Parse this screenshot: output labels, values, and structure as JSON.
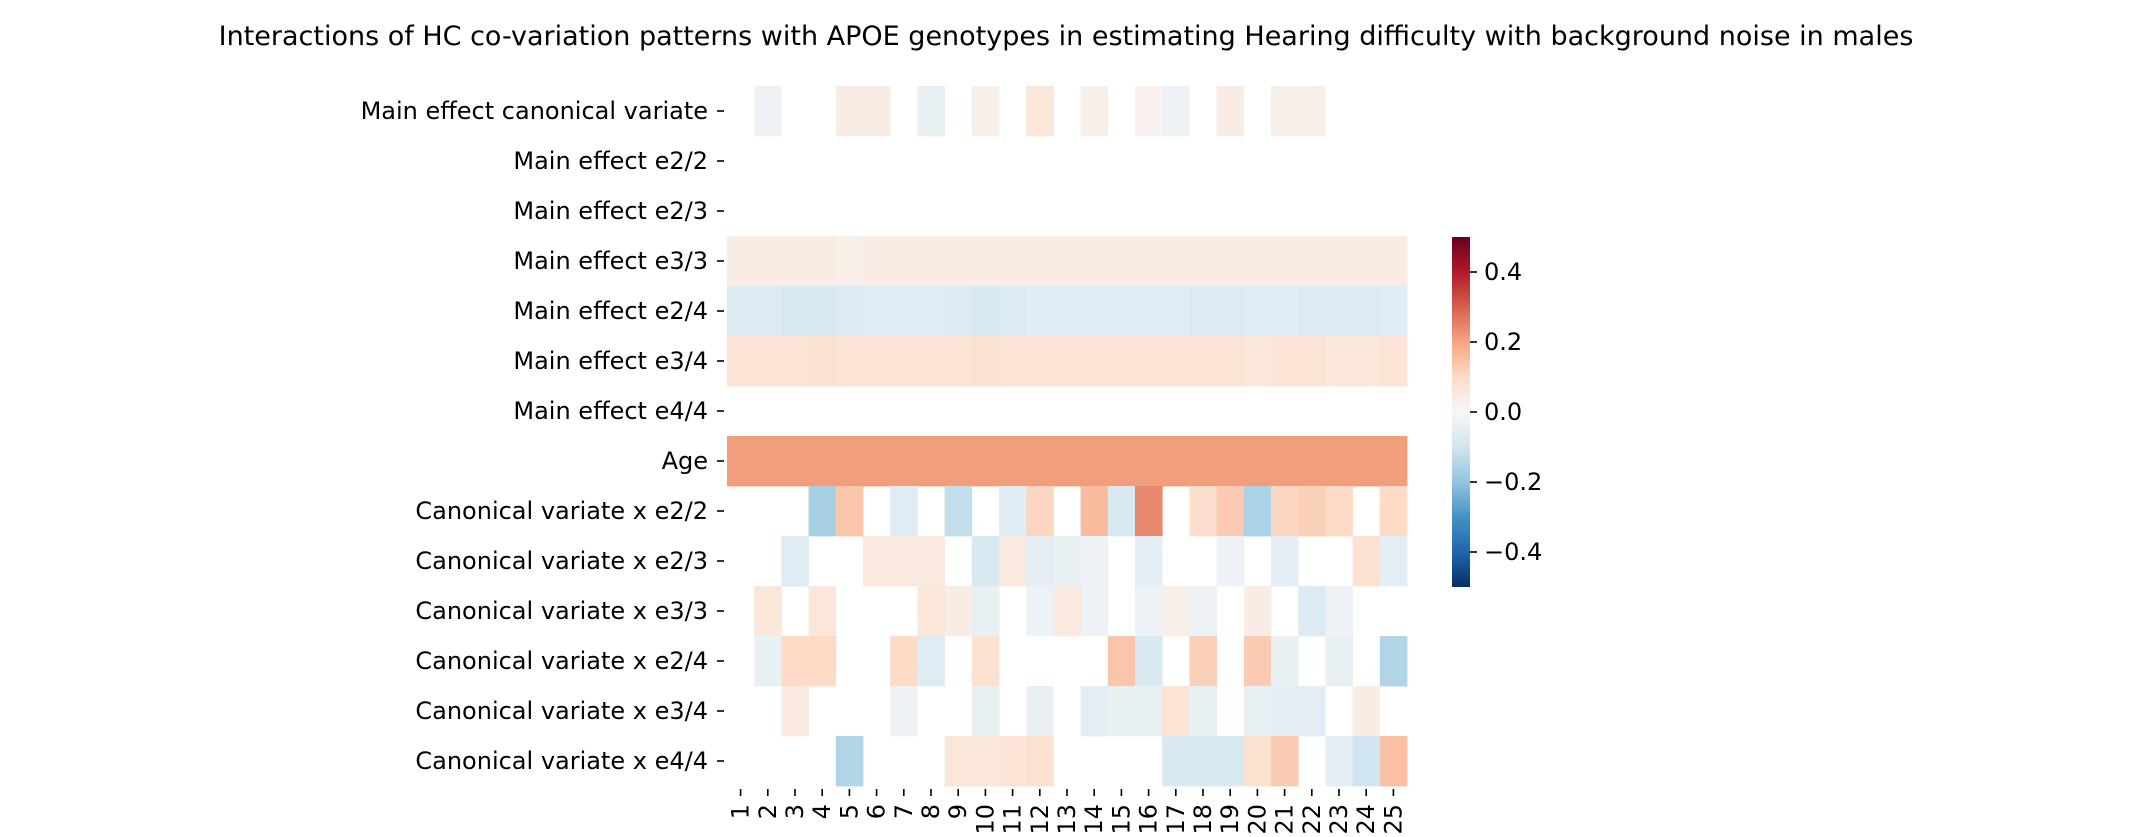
{
  "chart_data": {
    "type": "heatmap",
    "title": "Interactions of HC co-variation patterns with APOE genotypes in estimating Hearing difficulty with background noise in males",
    "xlabel": "",
    "ylabel": "",
    "x": [
      "1",
      "2",
      "3",
      "4",
      "5",
      "6",
      "7",
      "8",
      "9",
      "10",
      "11",
      "12",
      "13",
      "14",
      "15",
      "16",
      "17",
      "18",
      "19",
      "20",
      "21",
      "22",
      "23",
      "24",
      "25"
    ],
    "y": [
      "Main effect canonical variate",
      "Main effect e2/2",
      "Main effect e2/3",
      "Main effect e3/3",
      "Main effect e2/4",
      "Main effect e3/4",
      "Main effect e4/4",
      "Age",
      "Canonical variate x e2/2",
      "Canonical variate x e2/3",
      "Canonical variate x e3/3",
      "Canonical variate x e2/4",
      "Canonical variate x e3/4",
      "Canonical variate x e4/4"
    ],
    "values": [
      [
        0,
        -0.03,
        0,
        0,
        0.04,
        0.04,
        0,
        -0.04,
        0,
        0.03,
        0,
        0.06,
        0,
        0.03,
        0,
        0.02,
        -0.03,
        0,
        0.04,
        0,
        0.03,
        0.03,
        0,
        0,
        0
      ],
      [
        0,
        0,
        0,
        0,
        0,
        0,
        0,
        0,
        0,
        0,
        0,
        0,
        0,
        0,
        0,
        0,
        0,
        0,
        0,
        0,
        0,
        0,
        0,
        0,
        0
      ],
      [
        0,
        0,
        0,
        0,
        0,
        0,
        0,
        0,
        0,
        0,
        0,
        0,
        0,
        0,
        0,
        0,
        0,
        0,
        0,
        0,
        0,
        0,
        0,
        0,
        0
      ],
      [
        0.04,
        0.04,
        0.04,
        0.04,
        0.03,
        0.04,
        0.04,
        0.04,
        0.04,
        0.04,
        0.04,
        0.04,
        0.04,
        0.04,
        0.04,
        0.04,
        0.04,
        0.04,
        0.04,
        0.04,
        0.04,
        0.04,
        0.04,
        0.04,
        0.04
      ],
      [
        -0.07,
        -0.07,
        -0.08,
        -0.08,
        -0.07,
        -0.06,
        -0.06,
        -0.06,
        -0.07,
        -0.08,
        -0.07,
        -0.06,
        -0.06,
        -0.06,
        -0.06,
        -0.06,
        -0.06,
        -0.07,
        -0.07,
        -0.06,
        -0.06,
        -0.07,
        -0.07,
        -0.07,
        -0.06
      ],
      [
        0.07,
        0.07,
        0.07,
        0.08,
        0.07,
        0.07,
        0.07,
        0.07,
        0.07,
        0.08,
        0.07,
        0.07,
        0.07,
        0.07,
        0.07,
        0.07,
        0.07,
        0.07,
        0.07,
        0.06,
        0.07,
        0.07,
        0.06,
        0.06,
        0.07
      ],
      [
        0,
        0,
        0,
        0,
        0,
        0,
        0,
        0,
        0,
        0,
        0,
        0,
        0,
        0,
        0,
        0,
        0,
        0,
        0,
        0,
        0,
        0,
        0,
        0,
        0
      ],
      [
        0.21,
        0.21,
        0.21,
        0.21,
        0.21,
        0.21,
        0.21,
        0.21,
        0.21,
        0.21,
        0.21,
        0.21,
        0.21,
        0.21,
        0.21,
        0.21,
        0.21,
        0.21,
        0.21,
        0.21,
        0.21,
        0.21,
        0.21,
        0.21,
        0.21
      ],
      [
        0,
        0,
        0,
        -0.17,
        0.14,
        0,
        -0.06,
        0,
        -0.12,
        0,
        -0.06,
        0.11,
        0,
        0.16,
        -0.08,
        0.24,
        0,
        0.09,
        0.13,
        -0.16,
        0.11,
        0.12,
        0.1,
        0,
        0.1
      ],
      [
        0,
        0,
        -0.06,
        0,
        0,
        0.05,
        0.05,
        0.05,
        0,
        -0.08,
        0.05,
        -0.05,
        -0.04,
        -0.03,
        0,
        -0.05,
        0,
        0,
        -0.03,
        0,
        -0.05,
        0,
        0,
        0.08,
        -0.05
      ],
      [
        0,
        0.06,
        0,
        0.06,
        0,
        0,
        0,
        0.06,
        0.04,
        -0.04,
        0,
        -0.03,
        0.05,
        -0.03,
        0,
        -0.03,
        0.03,
        -0.03,
        0,
        0.04,
        0,
        -0.07,
        -0.03,
        0,
        0
      ],
      [
        0,
        -0.04,
        0.1,
        0.1,
        0,
        0,
        0.1,
        -0.06,
        0,
        0.08,
        0,
        0,
        0,
        0,
        0.14,
        -0.08,
        0,
        0.12,
        0,
        0.13,
        -0.04,
        0,
        -0.04,
        0,
        -0.15
      ],
      [
        0,
        0,
        0.05,
        0,
        0,
        0,
        -0.03,
        0,
        0,
        -0.04,
        0,
        -0.04,
        0,
        -0.05,
        -0.04,
        -0.04,
        0.07,
        -0.04,
        0,
        -0.04,
        -0.05,
        -0.05,
        0,
        0.04,
        0
      ],
      [
        0,
        0,
        0,
        0,
        -0.15,
        0,
        0,
        0,
        0.06,
        0.06,
        0.07,
        0.08,
        0,
        0,
        0,
        0,
        -0.08,
        -0.08,
        -0.08,
        0.08,
        0.13,
        0,
        -0.05,
        -0.1,
        0.15
      ]
    ],
    "colormap": "RdBu_r",
    "vmin": -0.5,
    "vmax": 0.5,
    "colorbar_ticks": [
      0.4,
      0.2,
      0.0,
      -0.2,
      -0.4
    ],
    "colorbar_tick_labels": [
      "0.4",
      "0.2",
      "0.0",
      "−0.2",
      "−0.4"
    ]
  }
}
